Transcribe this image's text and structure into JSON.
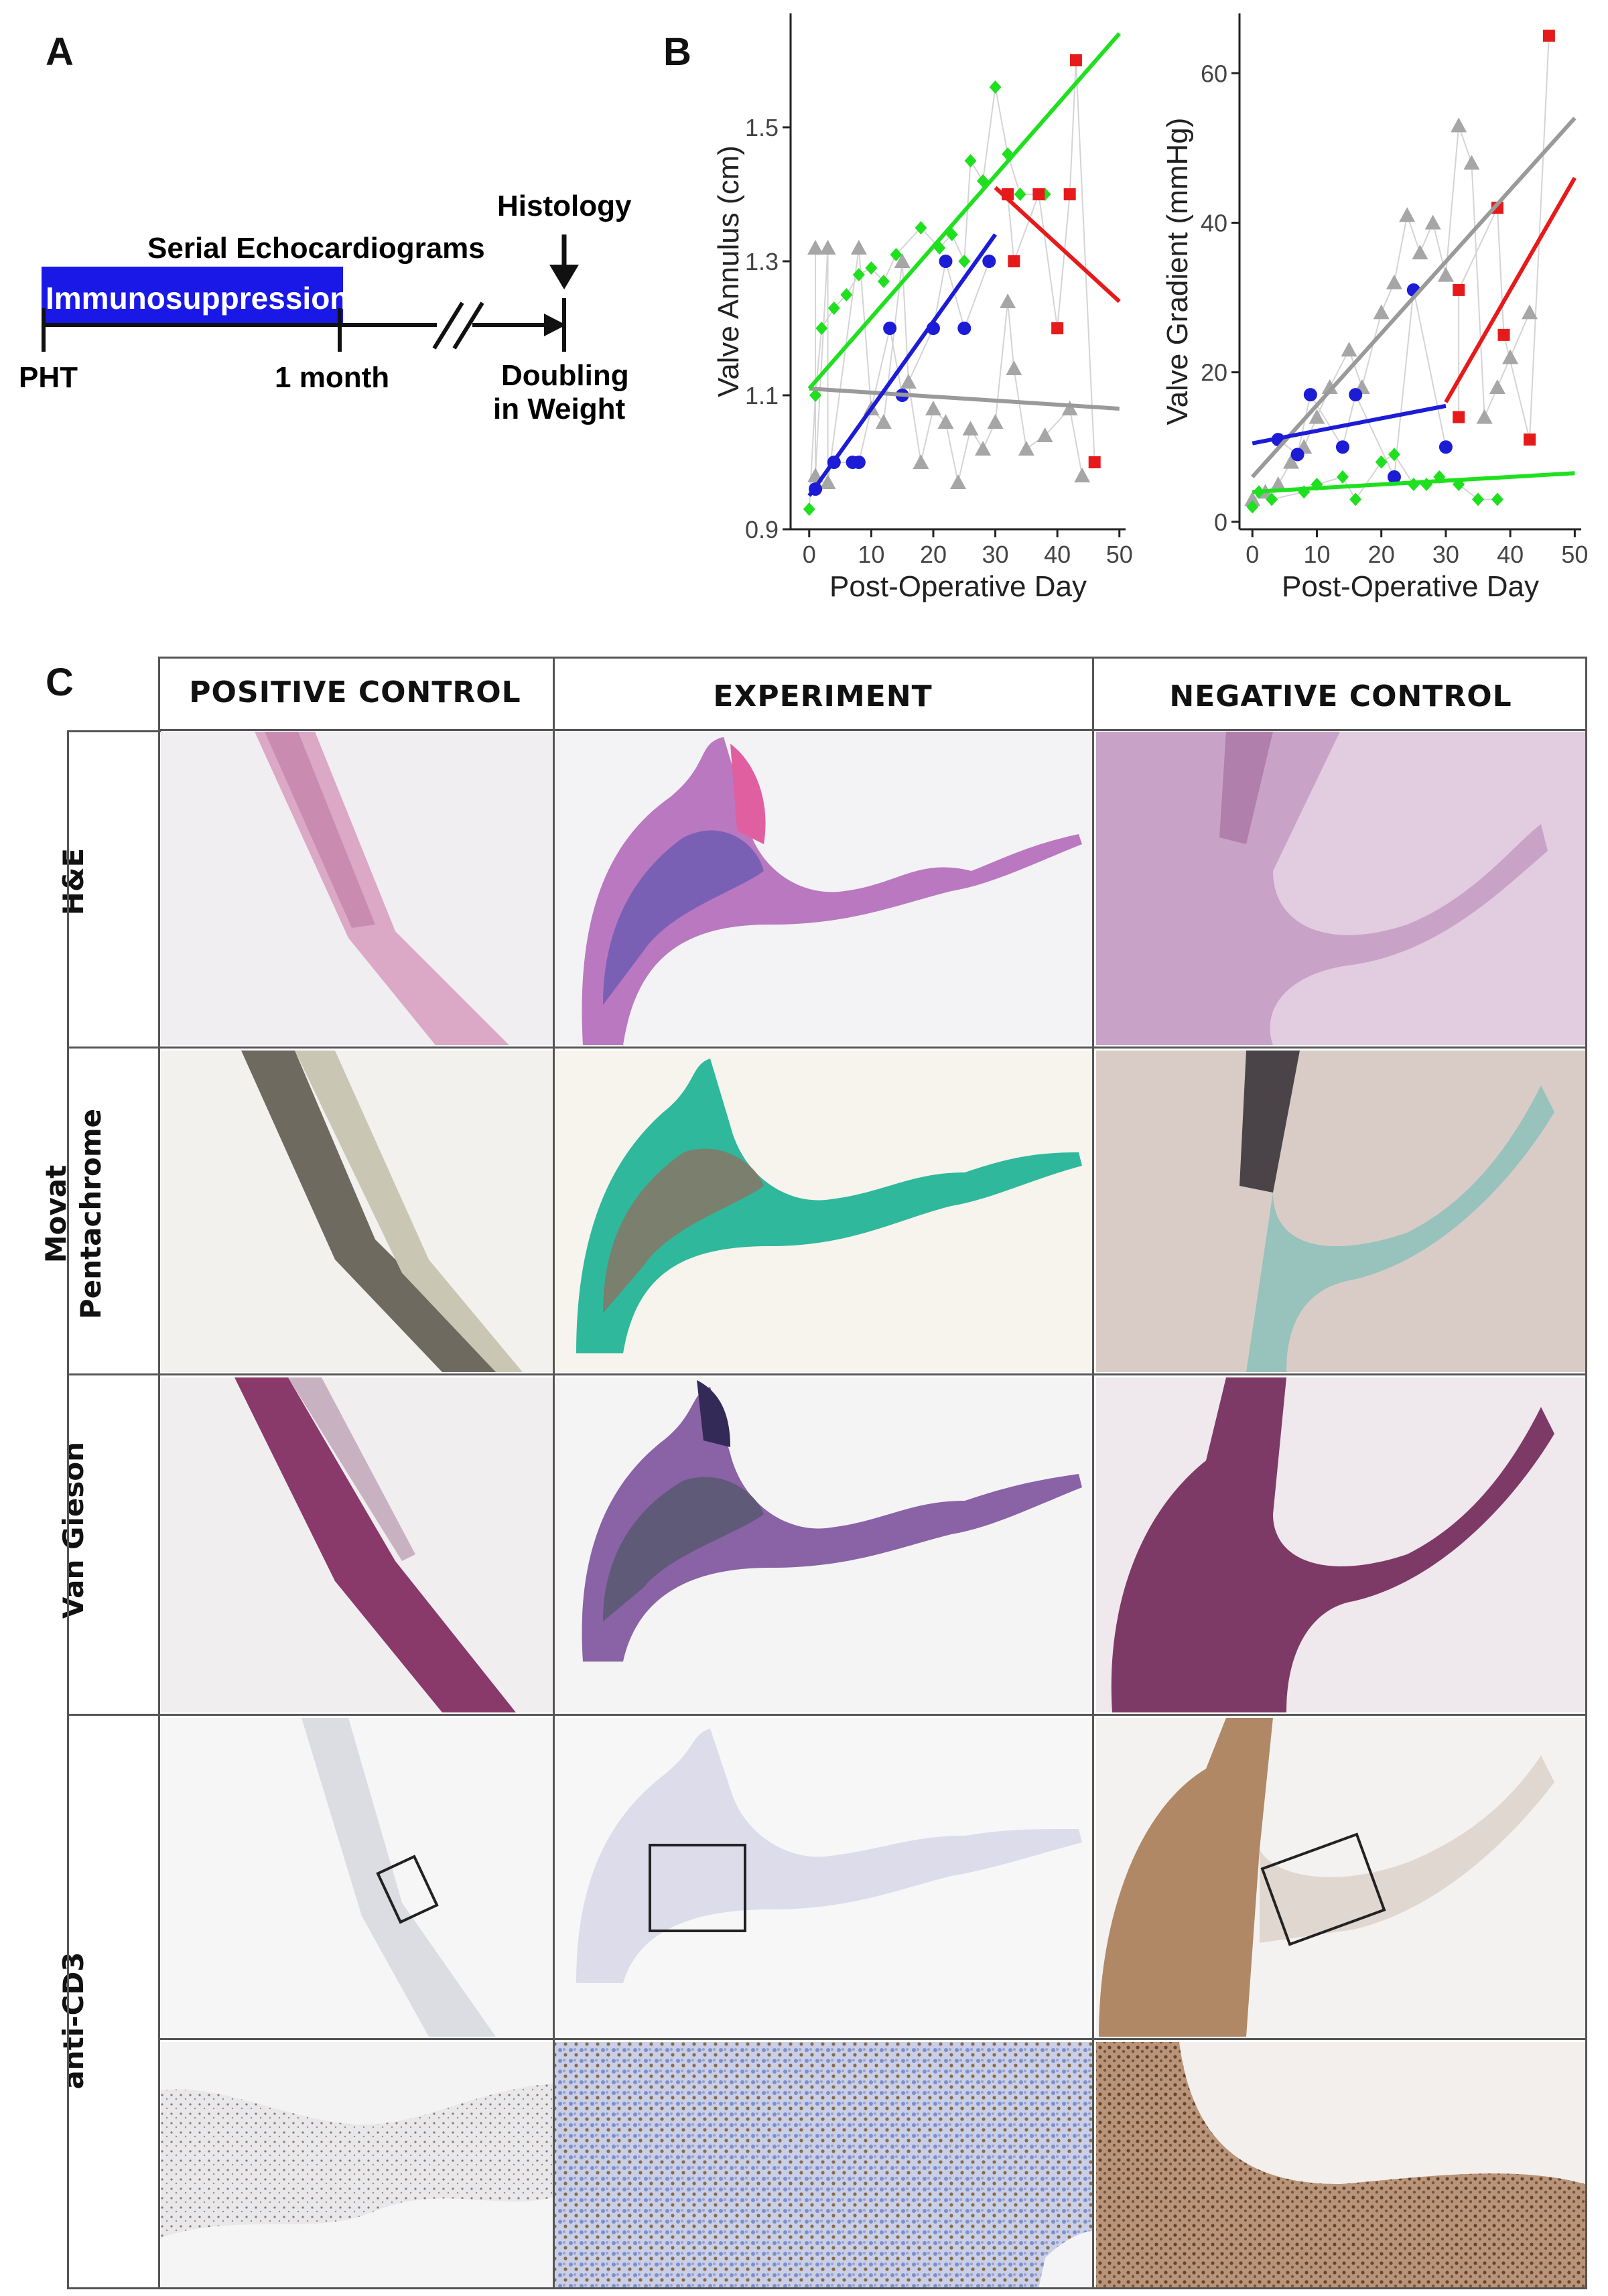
{
  "panel_a": {
    "letter": "A",
    "histology": "Histology",
    "serial_echo": "Serial Echocardiograms",
    "immunosuppression": "Immunosuppression",
    "pht": "PHT",
    "one_month": "1 month",
    "doubling_line1": "Doubling",
    "doubling_line2": "in Weight",
    "colors": {
      "immuno_bar": "#1a18e6",
      "immuno_text": "#ffffff"
    }
  },
  "panel_b": {
    "letter": "B"
  },
  "panel_c": {
    "letter": "C",
    "columns": [
      "POSITIVE CONTROL",
      "EXPERIMENT",
      "NEGATIVE CONTROL"
    ],
    "rows": [
      "H&E",
      "Movat\nPentachrome",
      "Van Gieson",
      "anti-CD3"
    ],
    "row_label_lines": [
      [
        "H&E"
      ],
      [
        "Movat",
        "Pentachrome"
      ],
      [
        "Van Gieson"
      ],
      [
        "anti-CD3"
      ]
    ]
  },
  "chart_data": [
    {
      "type": "scatter",
      "title": "",
      "xlabel": "Post-Operative Day",
      "ylabel": "Valve Annulus (cm)",
      "xlim": [
        -3,
        51
      ],
      "ylim": [
        0.9,
        1.67
      ],
      "xticks": [
        0,
        10,
        20,
        30,
        40,
        50
      ],
      "yticks": [
        0.9,
        1.1,
        1.3,
        1.5
      ],
      "ytick_labels": [
        "0.9",
        "1.1",
        "1.3",
        "1.5"
      ],
      "grid": false,
      "series": [
        {
          "name": "gray",
          "color": "#a6a6a6",
          "marker": "triangle",
          "points": [
            [
              1,
              1.32
            ],
            [
              3,
              1.32
            ],
            [
              1,
              0.98
            ],
            [
              3,
              0.97
            ],
            [
              8,
              1.32
            ],
            [
              10,
              1.08
            ],
            [
              12,
              1.06
            ],
            [
              15,
              1.3
            ],
            [
              16,
              1.12
            ],
            [
              18,
              1.0
            ],
            [
              20,
              1.08
            ],
            [
              22,
              1.06
            ],
            [
              24,
              0.97
            ],
            [
              26,
              1.05
            ],
            [
              28,
              1.02
            ],
            [
              30,
              1.06
            ],
            [
              32,
              1.24
            ],
            [
              33,
              1.14
            ],
            [
              35,
              1.02
            ],
            [
              38,
              1.04
            ],
            [
              42,
              1.08
            ],
            [
              44,
              0.98
            ]
          ],
          "fit": [
            [
              0,
              1.11
            ],
            [
              50,
              1.08
            ]
          ]
        },
        {
          "name": "green",
          "color": "#1fe01f",
          "marker": "diamond",
          "points": [
            [
              0,
              0.93
            ],
            [
              1,
              1.1
            ],
            [
              2,
              1.2
            ],
            [
              4,
              1.23
            ],
            [
              6,
              1.25
            ],
            [
              8,
              1.28
            ],
            [
              10,
              1.29
            ],
            [
              12,
              1.27
            ],
            [
              14,
              1.31
            ],
            [
              18,
              1.35
            ],
            [
              21,
              1.32
            ],
            [
              23,
              1.34
            ],
            [
              25,
              1.3
            ],
            [
              26,
              1.45
            ],
            [
              28,
              1.42
            ],
            [
              30,
              1.56
            ],
            [
              32,
              1.46
            ],
            [
              34,
              1.4
            ],
            [
              38,
              1.4
            ]
          ],
          "fit": [
            [
              0,
              1.11
            ],
            [
              50,
              1.64
            ]
          ]
        },
        {
          "name": "blue",
          "color": "#1c1cd6",
          "marker": "circle",
          "points": [
            [
              1,
              0.96
            ],
            [
              4,
              1.0
            ],
            [
              7,
              1.0
            ],
            [
              8,
              1.0
            ],
            [
              13,
              1.2
            ],
            [
              15,
              1.1
            ],
            [
              20,
              1.2
            ],
            [
              22,
              1.3
            ],
            [
              25,
              1.2
            ],
            [
              29,
              1.3
            ]
          ],
          "fit": [
            [
              0,
              0.95
            ],
            [
              30,
              1.34
            ]
          ]
        },
        {
          "name": "red",
          "color": "#e61a1a",
          "marker": "square",
          "points": [
            [
              32,
              1.4
            ],
            [
              33,
              1.3
            ],
            [
              37,
              1.4
            ],
            [
              40,
              1.2
            ],
            [
              42,
              1.4
            ],
            [
              43,
              1.6
            ],
            [
              46,
              1.0
            ]
          ],
          "fit": [
            [
              30,
              1.41
            ],
            [
              50,
              1.24
            ]
          ]
        }
      ]
    },
    {
      "type": "scatter",
      "title": "",
      "xlabel": "Post-Operative Day",
      "ylabel": "Valve Gradient (mmHg)",
      "xlim": [
        -2,
        51
      ],
      "ylim": [
        -1,
        68
      ],
      "xticks": [
        0,
        10,
        20,
        30,
        40,
        50
      ],
      "yticks": [
        0,
        20,
        40,
        60
      ],
      "ytick_labels": [
        "0",
        "20",
        "40",
        "60"
      ],
      "grid": false,
      "series": [
        {
          "name": "gray",
          "color": "#a6a6a6",
          "marker": "triangle",
          "points": [
            [
              0,
              3
            ],
            [
              2,
              4
            ],
            [
              4,
              5
            ],
            [
              6,
              8
            ],
            [
              8,
              10
            ],
            [
              10,
              14
            ],
            [
              12,
              18
            ],
            [
              15,
              23
            ],
            [
              17,
              18
            ],
            [
              20,
              28
            ],
            [
              22,
              32
            ],
            [
              24,
              41
            ],
            [
              26,
              36
            ],
            [
              28,
              40
            ],
            [
              30,
              33
            ],
            [
              32,
              53
            ],
            [
              34,
              48
            ],
            [
              36,
              14
            ],
            [
              38,
              18
            ],
            [
              40,
              22
            ],
            [
              43,
              28
            ]
          ],
          "fit": [
            [
              0,
              6
            ],
            [
              50,
              54
            ]
          ]
        },
        {
          "name": "green",
          "color": "#1fe01f",
          "marker": "diamond",
          "points": [
            [
              0,
              2
            ],
            [
              1,
              4
            ],
            [
              3,
              3
            ],
            [
              8,
              4
            ],
            [
              10,
              5
            ],
            [
              14,
              6
            ],
            [
              16,
              3
            ],
            [
              20,
              8
            ],
            [
              22,
              9
            ],
            [
              25,
              5
            ],
            [
              27,
              5
            ],
            [
              29,
              6
            ],
            [
              32,
              5
            ],
            [
              35,
              3
            ],
            [
              38,
              3
            ]
          ],
          "fit": [
            [
              0,
              4
            ],
            [
              50,
              6.5
            ]
          ]
        },
        {
          "name": "blue",
          "color": "#1c1cd6",
          "marker": "circle",
          "points": [
            [
              4,
              11
            ],
            [
              7,
              9
            ],
            [
              9,
              17
            ],
            [
              14,
              10
            ],
            [
              16,
              17
            ],
            [
              22,
              6
            ],
            [
              25,
              31
            ],
            [
              30,
              10
            ]
          ],
          "fit": [
            [
              0,
              10.5
            ],
            [
              30,
              15.5
            ]
          ]
        },
        {
          "name": "red",
          "color": "#e61a1a",
          "marker": "square",
          "points": [
            [
              32,
              14
            ],
            [
              32,
              31
            ],
            [
              38,
              42
            ],
            [
              39,
              25
            ],
            [
              43,
              11
            ],
            [
              46,
              65
            ]
          ],
          "fit": [
            [
              30,
              16
            ],
            [
              50,
              46
            ]
          ]
        }
      ]
    }
  ]
}
